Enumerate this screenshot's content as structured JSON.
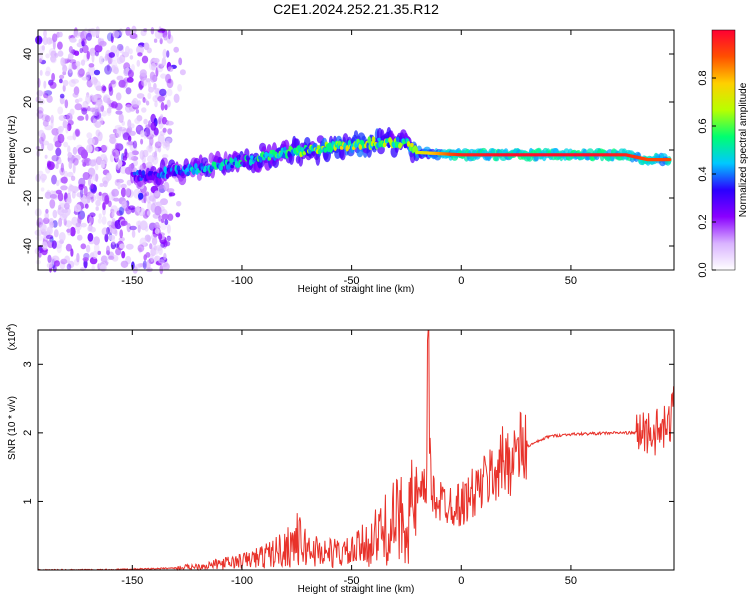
{
  "figure_title": "C2E1.2024.252.21.35.R12",
  "chart_data": [
    {
      "type": "heatmap",
      "title": "C2E1.2024.252.21.35.R12",
      "xlabel": "Height of straight line (km)",
      "ylabel": "Frequency (Hz)",
      "xlim": [
        -193,
        97
      ],
      "ylim": [
        -50,
        50
      ],
      "x_ticks": [
        -150,
        -100,
        -50,
        0,
        50
      ],
      "y_ticks": [
        -40,
        -20,
        0,
        20,
        40
      ],
      "grid": false,
      "colorbar": {
        "label": "Normalized spectral amplitude",
        "range": [
          0,
          1
        ],
        "ticks": [
          0.0,
          0.2,
          0.4,
          0.6,
          0.8
        ],
        "colormap": [
          "#ffffff",
          "#d9b3ff",
          "#8a00ff",
          "#2a00ff",
          "#00c8ff",
          "#00ff70",
          "#b8ff00",
          "#ffd000",
          "#ff5000",
          "#ff0033"
        ]
      },
      "signal_trace": {
        "x": [
          -150,
          -140,
          -130,
          -120,
          -110,
          -100,
          -90,
          -80,
          -70,
          -60,
          -50,
          -40,
          -30,
          -25,
          -20,
          0,
          20,
          40,
          60,
          75,
          85,
          95
        ],
        "freq_hz": [
          -11,
          -10,
          -9,
          -8,
          -6,
          -5,
          -3,
          -1,
          0,
          1,
          2,
          3,
          3,
          3,
          -1,
          -2,
          -2,
          -2,
          -2,
          -2,
          -4,
          -4
        ],
        "amplitude": [
          0.35,
          0.4,
          0.45,
          0.45,
          0.5,
          0.5,
          0.55,
          0.55,
          0.6,
          0.7,
          0.7,
          0.65,
          0.6,
          0.6,
          0.7,
          0.95,
          0.98,
          0.98,
          0.98,
          0.95,
          0.9,
          0.9
        ]
      },
      "noise_region_x": [
        -193,
        -135
      ]
    },
    {
      "type": "line",
      "xlabel": "Height of straight line (km)",
      "ylabel": "SNR (10 * v/v)",
      "y_multiplier_label": "(x10",
      "y_multiplier_exp": "4",
      "xlim": [
        -193,
        97
      ],
      "ylim": [
        0,
        3.5
      ],
      "x_ticks": [
        -150,
        -100,
        -50,
        0,
        50
      ],
      "y_ticks": [
        1,
        2,
        3
      ],
      "grid": false,
      "series": [
        {
          "color": "#e8322a",
          "x": [
            -193,
            -170,
            -150,
            -130,
            -115,
            -100,
            -90,
            -80,
            -75,
            -70,
            -60,
            -50,
            -40,
            -30,
            -25,
            -20,
            -16,
            -15,
            -14,
            -10,
            0,
            10,
            20,
            30,
            40,
            50,
            60,
            70,
            80,
            85,
            90,
            95,
            97
          ],
          "y": [
            0.0,
            0.0,
            0.01,
            0.03,
            0.07,
            0.13,
            0.2,
            0.32,
            0.45,
            0.3,
            0.25,
            0.25,
            0.45,
            0.7,
            0.8,
            0.95,
            1.2,
            3.5,
            1.2,
            1.0,
            0.95,
            1.25,
            1.6,
            1.8,
            1.95,
            1.98,
            1.99,
            2.0,
            2.0,
            2.02,
            2.0,
            2.1,
            2.5
          ]
        }
      ]
    }
  ]
}
